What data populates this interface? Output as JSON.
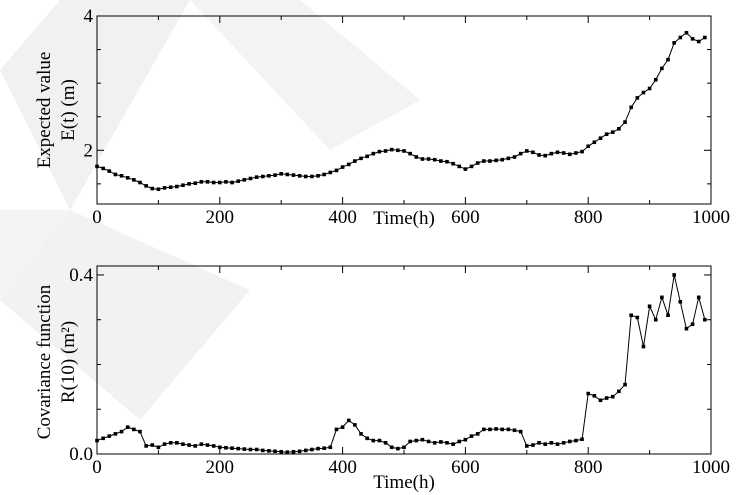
{
  "chart_data": [
    {
      "type": "line",
      "title": "",
      "xlabel": "Time(h)",
      "ylabel": "Expected value",
      "ylabel2": "E(t) (m)",
      "xlim": [
        0,
        1000
      ],
      "ylim": [
        1.2,
        4.0
      ],
      "xticks": [
        0,
        200,
        400,
        600,
        800,
        1000
      ],
      "xtick_labels": [
        "0",
        "200",
        "400",
        "600",
        "800",
        "1000"
      ],
      "yticks": [
        2,
        4
      ],
      "ytick_labels": [
        "2",
        "4"
      ],
      "grid": false,
      "x": [
        0,
        10,
        20,
        30,
        40,
        50,
        60,
        70,
        80,
        90,
        100,
        110,
        120,
        130,
        140,
        150,
        160,
        170,
        180,
        190,
        200,
        210,
        220,
        230,
        240,
        250,
        260,
        270,
        280,
        290,
        300,
        310,
        320,
        330,
        340,
        350,
        360,
        370,
        380,
        390,
        400,
        410,
        420,
        430,
        440,
        450,
        460,
        470,
        480,
        490,
        500,
        510,
        520,
        530,
        540,
        550,
        560,
        570,
        580,
        590,
        600,
        610,
        620,
        630,
        640,
        650,
        660,
        670,
        680,
        690,
        700,
        710,
        720,
        730,
        740,
        750,
        760,
        770,
        780,
        790,
        800,
        810,
        820,
        830,
        840,
        850,
        860,
        870,
        880,
        890,
        900,
        910,
        920,
        930,
        940,
        950,
        960,
        970,
        980,
        990
      ],
      "series": [
        {
          "values": [
            1.76,
            1.73,
            1.69,
            1.64,
            1.62,
            1.59,
            1.56,
            1.52,
            1.47,
            1.43,
            1.42,
            1.44,
            1.45,
            1.46,
            1.48,
            1.5,
            1.51,
            1.53,
            1.53,
            1.52,
            1.52,
            1.53,
            1.52,
            1.54,
            1.56,
            1.58,
            1.6,
            1.61,
            1.62,
            1.63,
            1.65,
            1.64,
            1.63,
            1.62,
            1.61,
            1.61,
            1.62,
            1.64,
            1.67,
            1.7,
            1.75,
            1.79,
            1.84,
            1.88,
            1.91,
            1.95,
            1.98,
            1.99,
            2.01,
            2.0,
            1.99,
            1.95,
            1.9,
            1.87,
            1.87,
            1.86,
            1.84,
            1.83,
            1.8,
            1.76,
            1.72,
            1.76,
            1.81,
            1.84,
            1.84,
            1.85,
            1.86,
            1.88,
            1.9,
            1.95,
            1.99,
            1.97,
            1.93,
            1.92,
            1.95,
            1.97,
            1.96,
            1.94,
            1.96,
            1.98,
            2.06,
            2.12,
            2.18,
            2.24,
            2.27,
            2.32,
            2.42,
            2.64,
            2.78,
            2.86,
            2.92,
            3.05,
            3.22,
            3.35,
            3.6,
            3.68,
            3.75,
            3.66,
            3.62,
            3.68
          ]
        }
      ]
    },
    {
      "type": "line",
      "title": "",
      "xlabel": "Time(h)",
      "ylabel": "Covariance function",
      "ylabel2": "R(10) (m²)",
      "xlim": [
        0,
        1000
      ],
      "ylim": [
        0.0,
        0.42
      ],
      "xticks": [
        0,
        200,
        400,
        600,
        800,
        1000
      ],
      "xtick_labels": [
        "0",
        "200",
        "400",
        "600",
        "800",
        "1000"
      ],
      "yticks": [
        0.0,
        0.4
      ],
      "ytick_labels": [
        "0.0",
        "0.4"
      ],
      "grid": false,
      "x": [
        0,
        10,
        20,
        30,
        40,
        50,
        60,
        70,
        80,
        90,
        100,
        110,
        120,
        130,
        140,
        150,
        160,
        170,
        180,
        190,
        200,
        210,
        220,
        230,
        240,
        250,
        260,
        270,
        280,
        290,
        300,
        310,
        320,
        330,
        340,
        350,
        360,
        370,
        380,
        390,
        400,
        410,
        420,
        430,
        440,
        450,
        460,
        470,
        480,
        490,
        500,
        510,
        520,
        530,
        540,
        550,
        560,
        570,
        580,
        590,
        600,
        610,
        620,
        630,
        640,
        650,
        660,
        670,
        680,
        690,
        700,
        710,
        720,
        730,
        740,
        750,
        760,
        770,
        780,
        790,
        800,
        810,
        820,
        830,
        840,
        850,
        860,
        870,
        880,
        890,
        900,
        910,
        920,
        930,
        940,
        950,
        960,
        970,
        980,
        990
      ],
      "series": [
        {
          "values": [
            0.03,
            0.035,
            0.04,
            0.045,
            0.05,
            0.06,
            0.055,
            0.05,
            0.018,
            0.02,
            0.015,
            0.022,
            0.025,
            0.025,
            0.022,
            0.02,
            0.018,
            0.022,
            0.02,
            0.018,
            0.015,
            0.014,
            0.013,
            0.012,
            0.011,
            0.01,
            0.01,
            0.008,
            0.007,
            0.006,
            0.005,
            0.004,
            0.005,
            0.006,
            0.008,
            0.01,
            0.012,
            0.013,
            0.015,
            0.055,
            0.06,
            0.075,
            0.065,
            0.045,
            0.035,
            0.03,
            0.03,
            0.025,
            0.015,
            0.012,
            0.015,
            0.028,
            0.03,
            0.032,
            0.028,
            0.025,
            0.027,
            0.025,
            0.022,
            0.028,
            0.032,
            0.04,
            0.045,
            0.055,
            0.055,
            0.056,
            0.055,
            0.055,
            0.053,
            0.05,
            0.018,
            0.02,
            0.025,
            0.022,
            0.025,
            0.022,
            0.025,
            0.028,
            0.03,
            0.033,
            0.135,
            0.13,
            0.12,
            0.125,
            0.128,
            0.14,
            0.155,
            0.31,
            0.305,
            0.24,
            0.33,
            0.3,
            0.35,
            0.31,
            0.4,
            0.34,
            0.28,
            0.29,
            0.35,
            0.3
          ]
        }
      ]
    }
  ]
}
